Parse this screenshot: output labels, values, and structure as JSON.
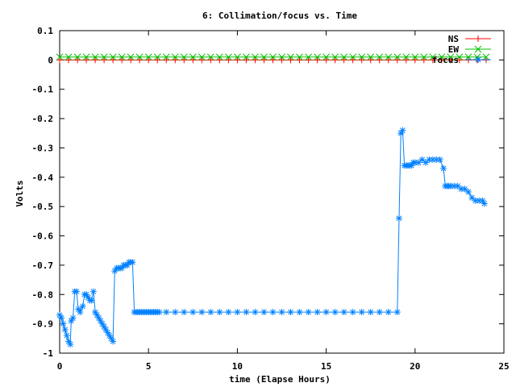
{
  "chart_data": {
    "type": "line",
    "title": "6: Collimation/focus vs. Time",
    "xlabel": "time (Elapse Hours)",
    "ylabel": "Volts",
    "xlim": [
      0,
      25
    ],
    "ylim": [
      -1,
      0.1
    ],
    "x_ticks": [
      0,
      5,
      10,
      15,
      20,
      25
    ],
    "y_ticks": [
      0.1,
      0,
      -0.1,
      -0.2,
      -0.3,
      -0.4,
      -0.5,
      -0.6,
      -0.7,
      -0.8,
      -0.9,
      -1
    ],
    "x_tick_labels": [
      "0",
      "5",
      "10",
      "15",
      "20",
      "25"
    ],
    "y_tick_labels": [
      "0.1",
      "0",
      "-0.1",
      "-0.2",
      "-0.3",
      "-0.4",
      "-0.5",
      "-0.6",
      "-0.7",
      "-0.8",
      "-0.9",
      "-1"
    ],
    "legend_position": "top-right",
    "grid": false,
    "series": [
      {
        "name": "NS",
        "color": "#ff0000",
        "marker": "plus",
        "x": [
          0.0,
          0.5,
          1.0,
          1.5,
          2.0,
          2.5,
          3.0,
          3.5,
          4.0,
          4.5,
          5.0,
          5.5,
          6.0,
          6.5,
          7.0,
          7.5,
          8.0,
          8.5,
          9.0,
          9.5,
          10.0,
          10.5,
          11.0,
          11.5,
          12.0,
          12.5,
          13.0,
          13.5,
          14.0,
          14.5,
          15.0,
          15.5,
          16.0,
          16.5,
          17.0,
          17.5,
          18.0,
          18.5,
          19.0,
          19.5,
          20.0,
          20.5,
          21.0,
          21.5,
          22.0,
          22.5,
          23.0,
          23.5,
          24.0
        ],
        "y": [
          0,
          0,
          0,
          0,
          0,
          0,
          0,
          0,
          0,
          0,
          0,
          0,
          0,
          0,
          0,
          0,
          0,
          0,
          0,
          0,
          0,
          0,
          0,
          0,
          0,
          0,
          0,
          0,
          0,
          0,
          0,
          0,
          0,
          0,
          0,
          0,
          0,
          0,
          0,
          0,
          0,
          0,
          0,
          0,
          0,
          0,
          0,
          0,
          0
        ]
      },
      {
        "name": "EW",
        "color": "#00c000",
        "marker": "cross",
        "x": [
          0.0,
          0.5,
          1.0,
          1.5,
          2.0,
          2.5,
          3.0,
          3.5,
          4.0,
          4.5,
          5.0,
          5.5,
          6.0,
          6.5,
          7.0,
          7.5,
          8.0,
          8.5,
          9.0,
          9.5,
          10.0,
          10.5,
          11.0,
          11.5,
          12.0,
          12.5,
          13.0,
          13.5,
          14.0,
          14.5,
          15.0,
          15.5,
          16.0,
          16.5,
          17.0,
          17.5,
          18.0,
          18.5,
          19.0,
          19.5,
          20.0,
          20.5,
          21.0,
          21.5,
          22.0,
          22.5,
          23.0,
          23.5,
          24.0
        ],
        "y": [
          0.01,
          0.01,
          0.01,
          0.01,
          0.01,
          0.01,
          0.01,
          0.01,
          0.01,
          0.01,
          0.01,
          0.01,
          0.01,
          0.01,
          0.01,
          0.01,
          0.01,
          0.01,
          0.01,
          0.01,
          0.01,
          0.01,
          0.01,
          0.01,
          0.01,
          0.01,
          0.01,
          0.01,
          0.01,
          0.01,
          0.01,
          0.01,
          0.01,
          0.01,
          0.01,
          0.01,
          0.01,
          0.01,
          0.01,
          0.01,
          0.01,
          0.01,
          0.01,
          0.01,
          0.01,
          0.01,
          0.01,
          0.01,
          0.01
        ]
      },
      {
        "name": "focus",
        "color": "#0080ff",
        "marker": "star",
        "x": [
          0.0,
          0.1,
          0.2,
          0.3,
          0.4,
          0.5,
          0.6,
          0.65,
          0.75,
          0.85,
          0.95,
          1.05,
          1.15,
          1.3,
          1.4,
          1.5,
          1.6,
          1.7,
          1.8,
          1.9,
          2.0,
          2.1,
          2.2,
          2.3,
          2.4,
          2.5,
          2.6,
          2.7,
          2.8,
          2.9,
          3.0,
          3.1,
          3.2,
          3.3,
          3.4,
          3.5,
          3.6,
          3.7,
          3.8,
          3.9,
          4.0,
          4.1,
          4.2,
          4.3,
          4.4,
          4.5,
          4.6,
          4.7,
          4.8,
          4.9,
          5.0,
          5.1,
          5.2,
          5.3,
          5.4,
          5.5,
          5.6,
          6.0,
          6.5,
          7.0,
          7.5,
          8.0,
          8.5,
          9.0,
          9.5,
          10.0,
          10.5,
          11.0,
          11.5,
          12.0,
          12.5,
          13.0,
          13.5,
          14.0,
          14.5,
          15.0,
          15.5,
          16.0,
          16.5,
          17.0,
          17.5,
          18.0,
          18.5,
          19.0,
          19.1,
          19.2,
          19.3,
          19.4,
          19.5,
          19.6,
          19.7,
          19.8,
          19.9,
          20.0,
          20.2,
          20.4,
          20.6,
          20.8,
          21.0,
          21.2,
          21.4,
          21.6,
          21.7,
          21.8,
          21.9,
          22.0,
          22.2,
          22.4,
          22.6,
          22.8,
          23.0,
          23.2,
          23.4,
          23.6,
          23.8,
          23.9
        ],
        "y": [
          -0.87,
          -0.88,
          -0.9,
          -0.92,
          -0.94,
          -0.96,
          -0.97,
          -0.89,
          -0.88,
          -0.79,
          -0.79,
          -0.85,
          -0.86,
          -0.84,
          -0.8,
          -0.8,
          -0.81,
          -0.82,
          -0.82,
          -0.79,
          -0.86,
          -0.87,
          -0.88,
          -0.89,
          -0.9,
          -0.91,
          -0.92,
          -0.93,
          -0.94,
          -0.95,
          -0.96,
          -0.72,
          -0.71,
          -0.71,
          -0.71,
          -0.71,
          -0.7,
          -0.7,
          -0.7,
          -0.69,
          -0.69,
          -0.69,
          -0.86,
          -0.86,
          -0.86,
          -0.86,
          -0.86,
          -0.86,
          -0.86,
          -0.86,
          -0.86,
          -0.86,
          -0.86,
          -0.86,
          -0.86,
          -0.86,
          -0.86,
          -0.86,
          -0.86,
          -0.86,
          -0.86,
          -0.86,
          -0.86,
          -0.86,
          -0.86,
          -0.86,
          -0.86,
          -0.86,
          -0.86,
          -0.86,
          -0.86,
          -0.86,
          -0.86,
          -0.86,
          -0.86,
          -0.86,
          -0.86,
          -0.86,
          -0.86,
          -0.86,
          -0.86,
          -0.86,
          -0.86,
          -0.86,
          -0.54,
          -0.25,
          -0.24,
          -0.36,
          -0.36,
          -0.36,
          -0.36,
          -0.36,
          -0.35,
          -0.35,
          -0.35,
          -0.34,
          -0.35,
          -0.34,
          -0.34,
          -0.34,
          -0.34,
          -0.37,
          -0.43,
          -0.43,
          -0.43,
          -0.43,
          -0.43,
          -0.43,
          -0.44,
          -0.44,
          -0.45,
          -0.47,
          -0.48,
          -0.48,
          -0.48,
          -0.49
        ]
      }
    ]
  }
}
